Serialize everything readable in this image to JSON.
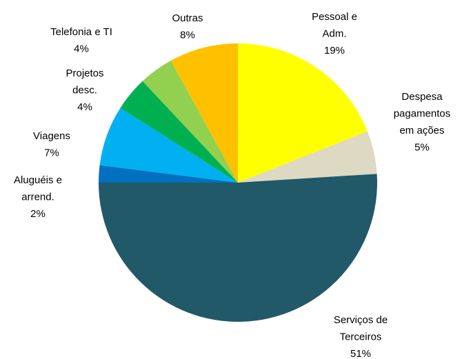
{
  "chart_data": {
    "type": "pie",
    "categories": [
      "Pessoal e\nAdm.",
      "Despesa\npagamentos\nem ações",
      "Serviços de\nTerceiros",
      "Aluguéis e\narrend.",
      "Viagens",
      "Projetos\ndesc.",
      "Telefonia e TI",
      "Outras"
    ],
    "values": [
      19,
      5,
      51,
      2,
      7,
      4,
      4,
      8
    ],
    "value_labels": [
      "19%",
      "5%",
      "51%",
      "2%",
      "7%",
      "4%",
      "4%",
      "8%"
    ],
    "colors": [
      "#ffff00",
      "#ddd9c3",
      "#215968",
      "#0070c0",
      "#00b0f0",
      "#00b050",
      "#92d050",
      "#ffc000"
    ]
  }
}
